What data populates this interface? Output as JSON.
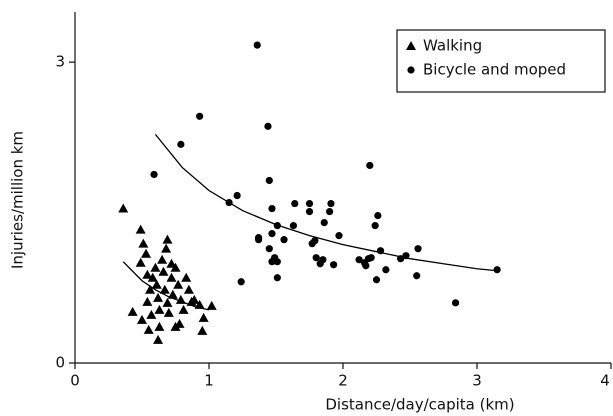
{
  "chart_data": {
    "type": "scatter",
    "x_label": "Distance/day/capita (km)",
    "y_label": "Injuries/million km",
    "xlim": [
      0,
      4
    ],
    "ylim": [
      0,
      3.5
    ],
    "xticks": [
      0,
      1,
      2,
      3,
      4
    ],
    "yticks": [
      0,
      3
    ],
    "legend": "upper right",
    "series": [
      {
        "name": "Walking",
        "color": "#000000",
        "marker": "triangle",
        "x": [
          0.36,
          0.49,
          0.43,
          0.49,
          0.51,
          0.53,
          0.54,
          0.56,
          0.54,
          0.57,
          0.55,
          0.58,
          0.6,
          0.61,
          0.62,
          0.63,
          0.63,
          0.65,
          0.66,
          0.67,
          0.69,
          0.7,
          0.68,
          0.69,
          0.72,
          0.72,
          0.73,
          0.75,
          0.77,
          0.75,
          0.78,
          0.79,
          0.81,
          0.83,
          0.85,
          0.87,
          0.89,
          0.93,
          0.96,
          0.95,
          1.02,
          0.62,
          0.5
        ],
        "values": [
          1.54,
          1.0,
          0.51,
          1.33,
          1.19,
          1.09,
          0.88,
          0.73,
          0.61,
          0.48,
          0.33,
          0.85,
          0.95,
          0.78,
          0.65,
          0.53,
          0.36,
          1.03,
          0.91,
          0.73,
          0.6,
          0.5,
          1.14,
          1.23,
          0.99,
          0.85,
          0.68,
          0.95,
          0.78,
          0.36,
          0.39,
          0.63,
          0.53,
          0.85,
          0.73,
          0.61,
          0.63,
          0.58,
          0.45,
          0.32,
          0.57,
          0.23,
          0.43
        ]
      },
      {
        "name": "Bicycle and moped",
        "color": "#000000",
        "marker": "circle",
        "x": [
          1.36,
          0.93,
          1.44,
          0.79,
          0.59,
          1.45,
          1.21,
          1.15,
          1.47,
          1.64,
          1.75,
          1.75,
          1.91,
          1.9,
          1.86,
          1.51,
          1.63,
          1.37,
          1.47,
          1.56,
          1.37,
          1.79,
          1.77,
          1.97,
          1.45,
          1.49,
          1.47,
          1.51,
          1.8,
          1.85,
          1.83,
          1.93,
          2.12,
          2.16,
          2.19,
          2.2,
          2.26,
          2.24,
          2.28,
          2.21,
          2.17,
          2.32,
          2.25,
          2.43,
          2.47,
          2.56,
          2.55,
          3.15,
          2.84,
          1.24,
          1.51
        ],
        "values": [
          3.17,
          2.46,
          2.36,
          2.18,
          1.88,
          1.82,
          1.67,
          1.6,
          1.54,
          1.59,
          1.59,
          1.51,
          1.59,
          1.51,
          1.4,
          1.37,
          1.37,
          1.25,
          1.29,
          1.23,
          1.23,
          1.22,
          1.19,
          1.27,
          1.14,
          1.05,
          1.01,
          1.01,
          1.05,
          1.03,
          0.99,
          0.98,
          1.03,
          1.0,
          1.04,
          1.97,
          1.47,
          1.37,
          1.12,
          1.05,
          0.97,
          0.93,
          0.83,
          1.04,
          1.07,
          1.14,
          0.87,
          0.93,
          0.6,
          0.81,
          0.85
        ]
      }
    ],
    "fits": [
      {
        "color": "#000000",
        "x": [
          0.36,
          0.5,
          0.6,
          0.7,
          0.8,
          0.9,
          1.0
        ],
        "values": [
          1.01,
          0.82,
          0.73,
          0.66,
          0.61,
          0.56,
          0.53
        ]
      },
      {
        "color": "#000000",
        "x": [
          0.6,
          0.8,
          1.0,
          1.25,
          1.5,
          1.75,
          2.0,
          2.25,
          2.5,
          2.75,
          3.0,
          3.15
        ],
        "values": [
          2.28,
          1.95,
          1.72,
          1.52,
          1.38,
          1.27,
          1.18,
          1.11,
          1.04,
          0.99,
          0.94,
          0.92
        ]
      }
    ]
  }
}
